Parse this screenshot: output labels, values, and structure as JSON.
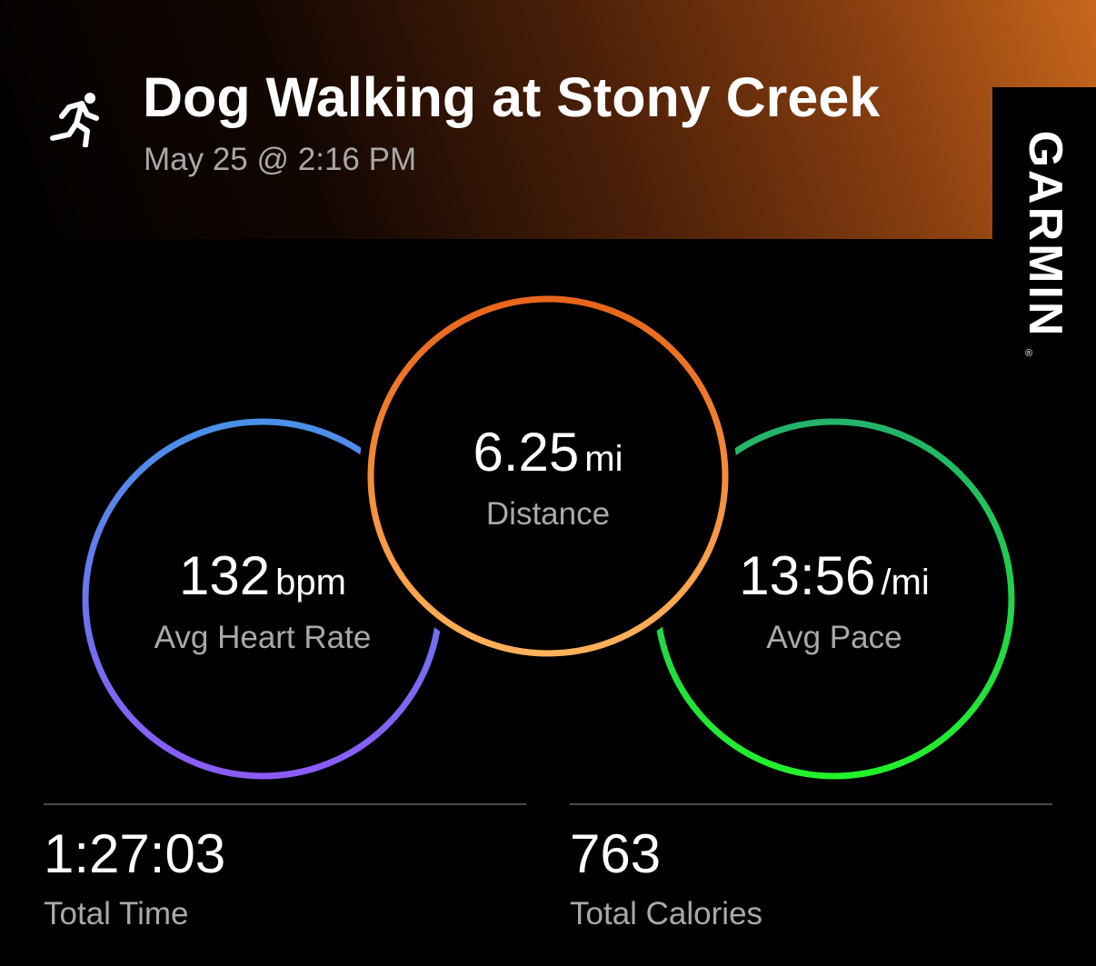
{
  "header": {
    "title": "Dog Walking at Stony Creek",
    "subtitle": "May 25 @ 2:16 PM",
    "activity_icon": "running-person-icon"
  },
  "brand": {
    "name": "GARMIN",
    "registered_mark": "®"
  },
  "metrics": {
    "heart_rate": {
      "value": "132",
      "unit": "bpm",
      "label": "Avg Heart Rate",
      "ring_colors": [
        "#4a90e8",
        "#8b5cf6"
      ]
    },
    "distance": {
      "value": "6.25",
      "unit": "mi",
      "label": "Distance",
      "ring_colors": [
        "#e8651a",
        "#ffb25a"
      ]
    },
    "pace": {
      "value": "13:56",
      "unit": "/mi",
      "label": "Avg Pace",
      "ring_colors": [
        "#23b36b",
        "#22f02a"
      ]
    }
  },
  "stats": {
    "total_time": {
      "value": "1:27:03",
      "label": "Total Time"
    },
    "total_calories": {
      "value": "763",
      "label": "Total Calories"
    }
  }
}
